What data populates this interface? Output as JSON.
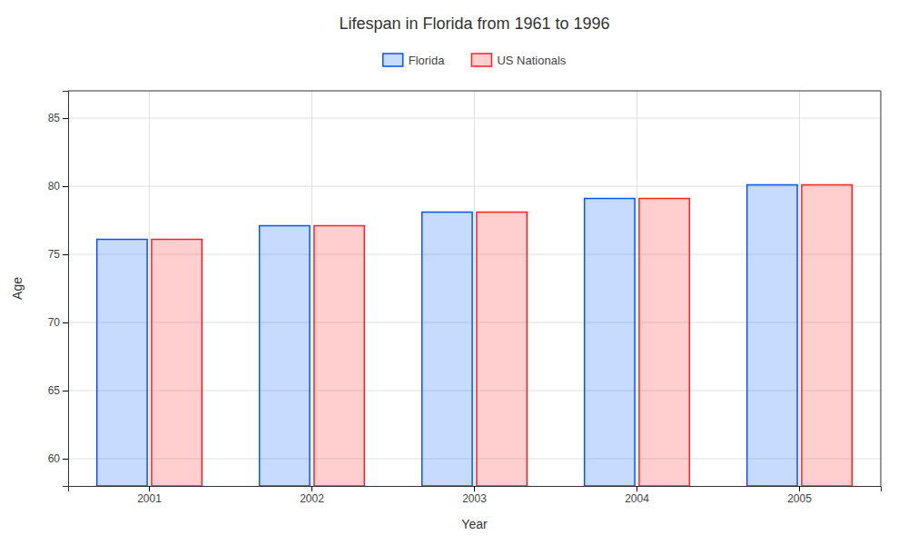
{
  "chart_data": {
    "type": "bar",
    "title": "Lifespan in Florida from 1961 to 1996",
    "x_label": "Year",
    "y_label": "Age",
    "categories": [
      "2001",
      "2002",
      "2003",
      "2004",
      "2005"
    ],
    "series": [
      {
        "name": "Florida",
        "color": "#0055ff",
        "values": [
          76.1,
          77.1,
          78.1,
          79.1,
          80.1
        ]
      },
      {
        "name": "US Nationals",
        "color": "#ff2222",
        "values": [
          76.1,
          77.1,
          78.1,
          79.1,
          80.1
        ]
      }
    ],
    "ylim": [
      58,
      87
    ],
    "yticks": [
      60,
      65,
      70,
      75,
      80,
      85
    ],
    "grid": true,
    "legend": "top"
  }
}
